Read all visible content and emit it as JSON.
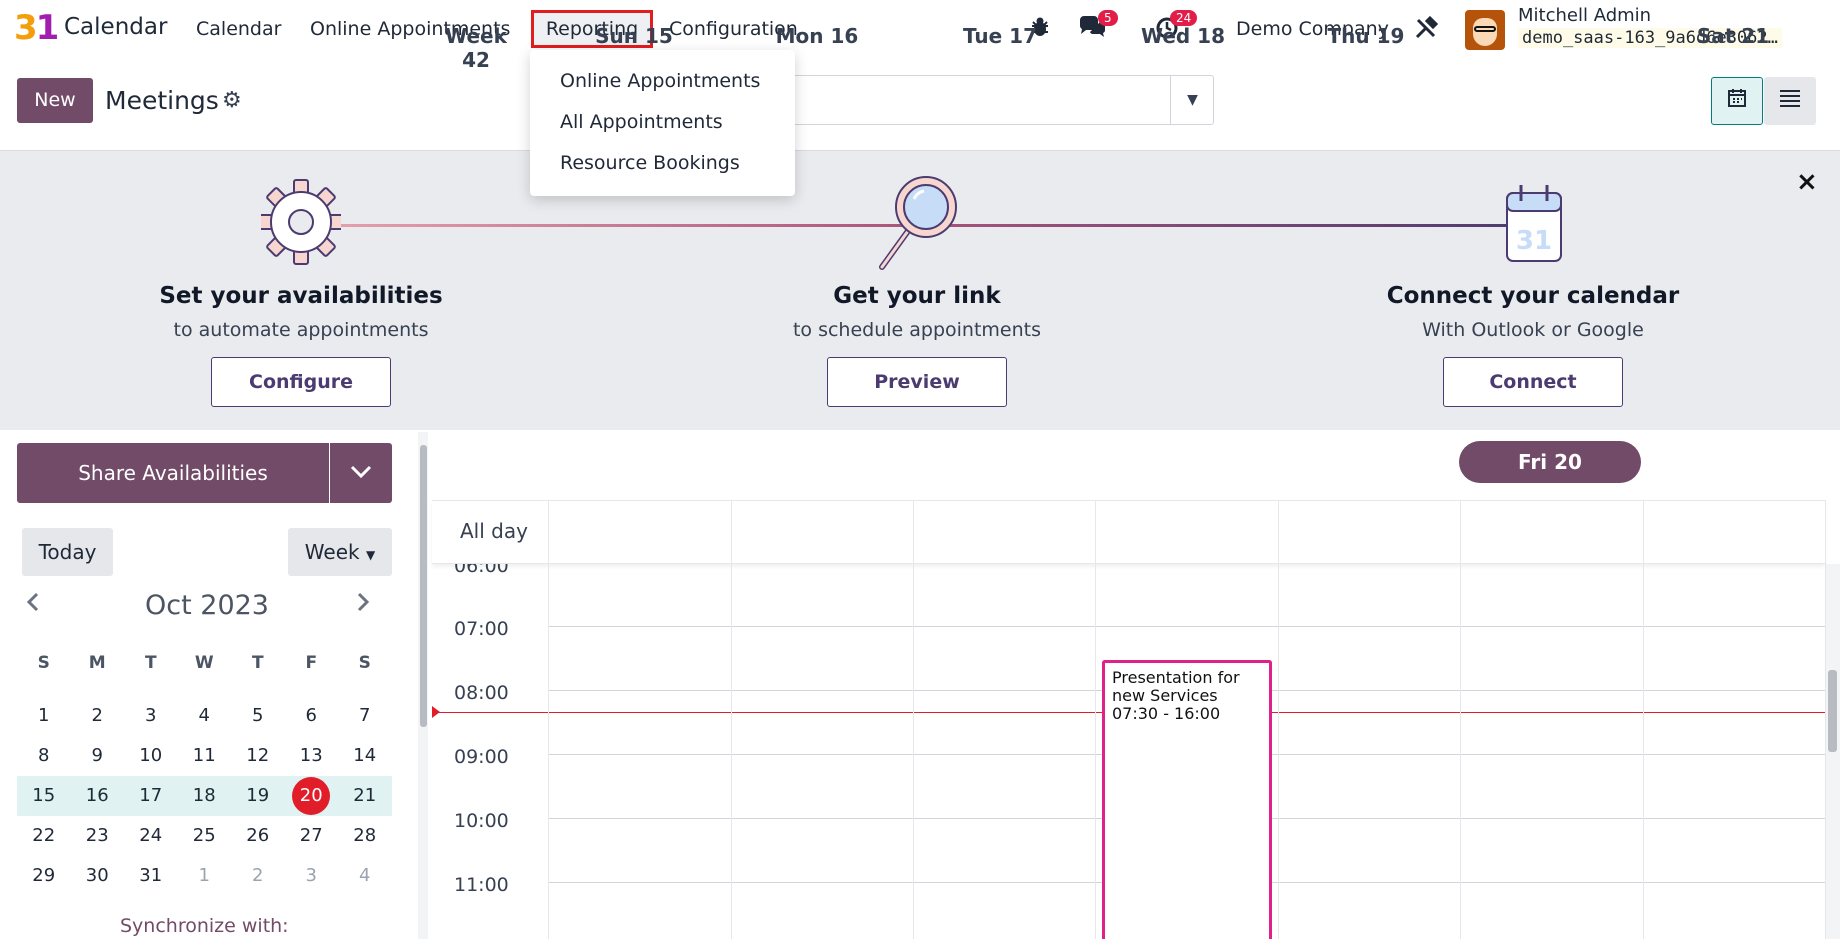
{
  "nav": {
    "logo_3": "3",
    "logo_1": "1",
    "app_name": "Calendar",
    "menu": [
      "Calendar",
      "Online Appointments",
      "Reporting",
      "Configuration"
    ],
    "messages_badge": "5",
    "activities_badge": "24",
    "company": "Demo Company",
    "user_name": "Mitchell Admin",
    "db_name": "demo_saas-163_9a6d6e3062…"
  },
  "dropdown": {
    "items": [
      "Online Appointments",
      "All Appointments",
      "Resource Bookings"
    ]
  },
  "control": {
    "new_label": "New",
    "title": "Meetings"
  },
  "onboarding": {
    "steps": [
      {
        "title": "Set your availabilities",
        "subtitle": "to automate appointments",
        "button": "Configure"
      },
      {
        "title": "Get your link",
        "subtitle": "to schedule appointments",
        "button": "Preview"
      },
      {
        "title": "Connect your calendar",
        "subtitle": "With Outlook or Google",
        "button": "Connect"
      }
    ],
    "close": "×"
  },
  "sidebar": {
    "share_label": "Share Availabilities",
    "today_label": "Today",
    "scale_label": "Week",
    "month": "Oct 2023",
    "weekdays": [
      "S",
      "M",
      "T",
      "W",
      "T",
      "F",
      "S"
    ],
    "weeks": [
      [
        "1",
        "2",
        "3",
        "4",
        "5",
        "6",
        "7"
      ],
      [
        "8",
        "9",
        "10",
        "11",
        "12",
        "13",
        "14"
      ],
      [
        "15",
        "16",
        "17",
        "18",
        "19",
        "20",
        "21"
      ],
      [
        "22",
        "23",
        "24",
        "25",
        "26",
        "27",
        "28"
      ],
      [
        "29",
        "30",
        "31",
        "1",
        "2",
        "3",
        "4"
      ]
    ],
    "sync_label": "Synchronize with:"
  },
  "calendar": {
    "week_label": "Week 42",
    "days": [
      "Sun 15",
      "Mon 16",
      "Tue 17",
      "Wed 18",
      "Thu 19",
      "Fri 20",
      "Sat 21"
    ],
    "allday_label": "All day",
    "times": [
      "06:00",
      "07:00",
      "08:00",
      "09:00",
      "10:00",
      "11:00"
    ],
    "event": {
      "title": "Presentation for new Services",
      "time": "07:30 - 16:00"
    }
  }
}
